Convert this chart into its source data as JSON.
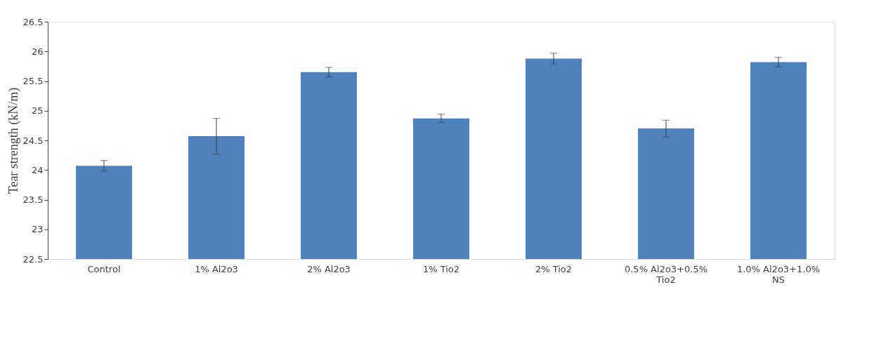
{
  "chart_data": {
    "type": "bar",
    "ylabel": "Tear strength  (kN/m)",
    "categories": [
      "Control",
      "1% Al2o3",
      "2% Al2o3",
      "1% Tio2",
      "2% Tio2",
      "0.5% Al2o3+0.5% Tio2",
      "1.0% Al2o3+1.0% NS"
    ],
    "values": [
      24.07,
      24.57,
      25.65,
      24.87,
      25.88,
      24.7,
      25.82
    ],
    "errors": [
      0.09,
      0.3,
      0.08,
      0.07,
      0.09,
      0.14,
      0.08
    ],
    "color": "#4f81bd",
    "ylim": [
      22.5,
      26.5
    ],
    "yticks": [
      22.5,
      23,
      23.5,
      24,
      24.5,
      25,
      25.5,
      26,
      26.5
    ],
    "grid": false
  }
}
